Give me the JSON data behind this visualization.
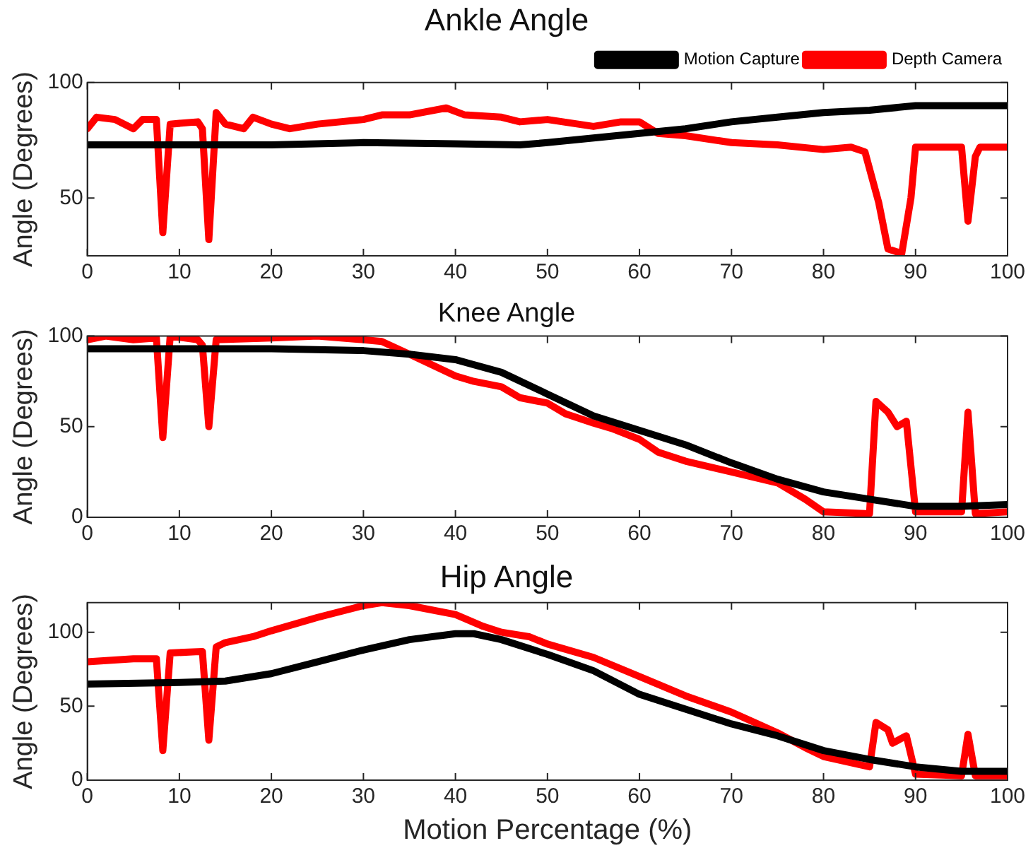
{
  "chart_data": [
    {
      "type": "line",
      "title": "Ankle Angle",
      "ylabel": "Angle (Degrees)",
      "xlim": [
        0,
        100
      ],
      "xticks": [
        0,
        10,
        20,
        30,
        40,
        50,
        60,
        70,
        80,
        90,
        100
      ],
      "ylim": [
        25,
        100
      ],
      "yticks": [
        50,
        100
      ],
      "grid": false,
      "legend": "top right",
      "marker": "none",
      "line_style": "solid",
      "series": [
        {
          "name": "Motion Capture",
          "color": "#000000",
          "x": [
            0,
            10,
            20,
            30,
            40,
            47,
            50,
            55,
            60,
            65,
            70,
            75,
            80,
            85,
            90,
            95,
            100
          ],
          "values": [
            73,
            73,
            73,
            74,
            73.5,
            73,
            74,
            76,
            78,
            80,
            83,
            85,
            87,
            88,
            90,
            90,
            90
          ]
        },
        {
          "name": "Depth Camera",
          "color": "#ff0000",
          "x": [
            0,
            1,
            3,
            5,
            6,
            7.5,
            8.2,
            9,
            12,
            12.5,
            13.2,
            14,
            15,
            17,
            18,
            20,
            22,
            25,
            30,
            32,
            35,
            39,
            41,
            45,
            47,
            50,
            55,
            58,
            60,
            62,
            65,
            70,
            75,
            80,
            83,
            84.5,
            86,
            87,
            88.5,
            89.5,
            90,
            92,
            95,
            95.7,
            96.5,
            97,
            100
          ],
          "values": [
            80,
            85,
            84,
            80,
            84,
            84,
            35,
            82,
            83,
            80,
            32,
            87,
            82,
            80,
            85,
            82,
            80,
            82,
            84,
            86,
            86,
            89,
            86,
            85,
            83,
            84,
            81,
            83,
            83,
            78,
            77,
            74,
            73,
            71,
            72,
            70,
            48,
            28,
            26,
            50,
            72,
            72,
            72,
            40,
            68,
            72,
            72
          ]
        }
      ]
    },
    {
      "type": "line",
      "title": "Knee Angle",
      "ylabel": "Angle (Degrees)",
      "xlim": [
        0,
        100
      ],
      "xticks": [
        0,
        10,
        20,
        30,
        40,
        50,
        60,
        70,
        80,
        90,
        100
      ],
      "ylim": [
        0,
        100
      ],
      "yticks": [
        0,
        50,
        100
      ],
      "grid": false,
      "legend": false,
      "marker": "none",
      "line_style": "solid",
      "series": [
        {
          "color": "#000000",
          "x": [
            0,
            10,
            20,
            30,
            35,
            40,
            45,
            50,
            55,
            60,
            65,
            70,
            75,
            80,
            85,
            90,
            95,
            100
          ],
          "values": [
            93,
            93,
            93,
            92,
            90,
            87,
            80,
            68,
            56,
            48,
            40,
            30,
            21,
            14,
            10,
            6,
            6,
            7
          ]
        },
        {
          "color": "#ff0000",
          "x": [
            0,
            2,
            5,
            7.5,
            8.2,
            9,
            12,
            12.5,
            13.2,
            14,
            20,
            25,
            30,
            32,
            35,
            40,
            42,
            45,
            47,
            50,
            52,
            55,
            57,
            60,
            62,
            65,
            70,
            75,
            78,
            80,
            85,
            85.7,
            87,
            88,
            89,
            90,
            95,
            95.7,
            96.5,
            100
          ],
          "values": [
            98,
            100,
            98,
            99,
            44,
            100,
            98,
            95,
            50,
            98,
            99,
            100,
            98,
            97,
            90,
            78,
            75,
            72,
            66,
            63,
            57,
            52,
            49,
            43,
            36,
            31,
            25,
            19,
            10,
            3,
            2,
            64,
            58,
            50,
            53,
            3,
            3,
            58,
            2,
            3
          ]
        }
      ]
    },
    {
      "type": "line",
      "title": "Hip Angle",
      "xlabel": "Motion Percentage (%)",
      "ylabel": "Angle (Degrees)",
      "xlim": [
        0,
        100
      ],
      "xticks": [
        0,
        10,
        20,
        30,
        40,
        50,
        60,
        70,
        80,
        90,
        100
      ],
      "ylim": [
        0,
        120
      ],
      "yticks": [
        0,
        50,
        100
      ],
      "grid": false,
      "legend": false,
      "marker": "none",
      "line_style": "solid",
      "series": [
        {
          "color": "#000000",
          "x": [
            0,
            10,
            15,
            20,
            25,
            30,
            35,
            40,
            42,
            45,
            50,
            55,
            60,
            65,
            70,
            75,
            80,
            85,
            90,
            95,
            100
          ],
          "values": [
            65,
            66,
            67,
            72,
            80,
            88,
            95,
            99,
            99,
            95,
            85,
            74,
            58,
            48,
            38,
            30,
            20,
            14,
            9,
            6,
            6
          ]
        },
        {
          "color": "#ff0000",
          "x": [
            0,
            5,
            7.5,
            8.2,
            9,
            12.5,
            13.2,
            14,
            15,
            18,
            20,
            25,
            30,
            32,
            35,
            40,
            43,
            45,
            48,
            50,
            55,
            60,
            65,
            70,
            75,
            78,
            80,
            85,
            85.7,
            87,
            87.5,
            89,
            90,
            95,
            95.7,
            96.5,
            100
          ],
          "values": [
            80,
            82,
            82,
            20,
            86,
            87,
            27,
            90,
            93,
            97,
            101,
            110,
            118,
            120,
            118,
            112,
            104,
            100,
            97,
            92,
            83,
            70,
            57,
            46,
            32,
            22,
            16,
            9,
            39,
            34,
            25,
            30,
            4,
            3,
            31,
            3,
            3
          ]
        }
      ]
    }
  ]
}
